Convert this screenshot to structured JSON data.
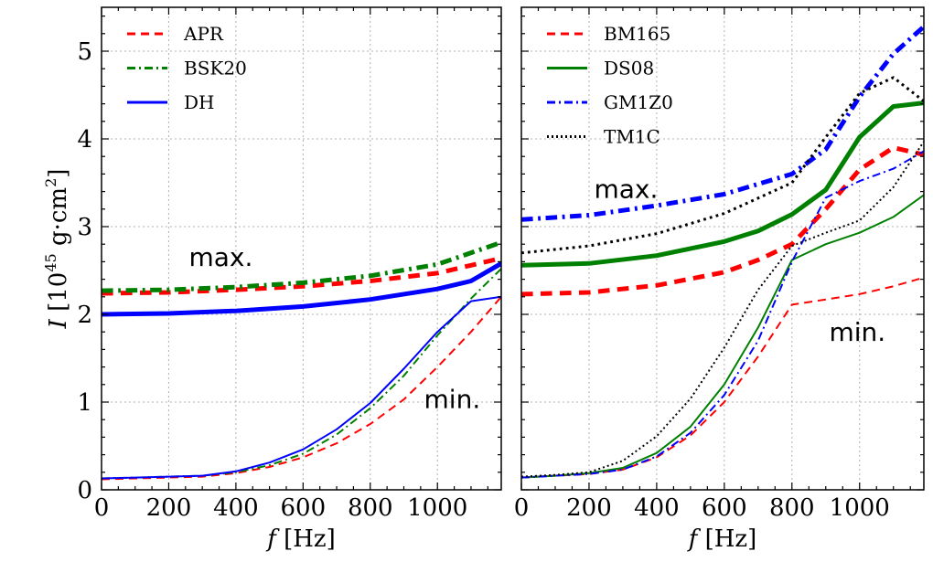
{
  "chart_data": [
    {
      "type": "line",
      "panel": "left",
      "xlabel": "f [Hz]",
      "ylabel": "I [10^45 g·cm^2]",
      "xlim": [
        0,
        1190
      ],
      "ylim": [
        0,
        5.5
      ],
      "xticks": [
        0,
        200,
        400,
        600,
        800,
        1000
      ],
      "yticks": [
        0,
        1,
        2,
        3,
        4,
        5
      ],
      "x_tick_labels": [
        "0",
        "200",
        "400",
        "600",
        "800",
        "1000"
      ],
      "y_tick_labels": [
        "0",
        "1",
        "2",
        "3",
        "4",
        "5"
      ],
      "grid": true,
      "legend_position": "top-left",
      "legend": [
        {
          "name": "APR",
          "color": "#ff0000",
          "style": "dashed"
        },
        {
          "name": "BSK20",
          "color": "#008000",
          "style": "dashdot"
        },
        {
          "name": "DH",
          "color": "#0000ff",
          "style": "solid"
        }
      ],
      "annotations": [
        {
          "text": "max.",
          "x": 260,
          "y": 2.55
        },
        {
          "text": "min.",
          "x": 960,
          "y": 0.93
        }
      ],
      "series": [
        {
          "name": "APR max",
          "legend": "APR",
          "color": "#ff0000",
          "style": "dashed",
          "weight": "thick",
          "x": [
            0,
            200,
            400,
            600,
            800,
            1000,
            1190
          ],
          "y": [
            2.24,
            2.25,
            2.28,
            2.32,
            2.38,
            2.47,
            2.64
          ]
        },
        {
          "name": "BSK20 max",
          "legend": "BSK20",
          "color": "#008000",
          "style": "dashdot",
          "weight": "thick",
          "x": [
            0,
            200,
            400,
            600,
            800,
            1000,
            1190
          ],
          "y": [
            2.27,
            2.28,
            2.31,
            2.36,
            2.44,
            2.57,
            2.82
          ]
        },
        {
          "name": "DH max",
          "legend": "DH",
          "color": "#0000ff",
          "style": "solid",
          "weight": "thick",
          "x": [
            0,
            200,
            400,
            600,
            800,
            1000,
            1100,
            1190
          ],
          "y": [
            2.0,
            2.01,
            2.04,
            2.09,
            2.17,
            2.29,
            2.38,
            2.58
          ]
        },
        {
          "name": "APR min",
          "legend": "APR",
          "color": "#ff0000",
          "style": "dashed",
          "weight": "thin",
          "x": [
            0,
            100,
            200,
            300,
            400,
            500,
            600,
            700,
            800,
            900,
            1000,
            1100,
            1190
          ],
          "y": [
            0.12,
            0.13,
            0.14,
            0.15,
            0.19,
            0.26,
            0.37,
            0.53,
            0.75,
            1.03,
            1.4,
            1.8,
            2.2
          ]
        },
        {
          "name": "BSK20 min",
          "legend": "BSK20",
          "color": "#008000",
          "style": "dashdot",
          "weight": "thin",
          "x": [
            0,
            100,
            200,
            300,
            400,
            500,
            600,
            700,
            800,
            900,
            1000,
            1100,
            1190
          ],
          "y": [
            0.13,
            0.14,
            0.15,
            0.16,
            0.2,
            0.28,
            0.41,
            0.63,
            0.93,
            1.3,
            1.76,
            2.18,
            2.52
          ]
        },
        {
          "name": "DH min",
          "legend": "DH",
          "color": "#0000ff",
          "style": "solid",
          "weight": "thin",
          "x": [
            0,
            100,
            200,
            300,
            400,
            500,
            600,
            700,
            800,
            900,
            1000,
            1100,
            1190
          ],
          "y": [
            0.13,
            0.14,
            0.15,
            0.16,
            0.21,
            0.31,
            0.46,
            0.69,
            0.99,
            1.38,
            1.8,
            2.15,
            2.2
          ]
        }
      ]
    },
    {
      "type": "line",
      "panel": "right",
      "xlabel": "f [Hz]",
      "ylabel": "",
      "xlim": [
        0,
        1190
      ],
      "ylim": [
        0,
        5.5
      ],
      "xticks": [
        0,
        200,
        400,
        600,
        800,
        1000
      ],
      "yticks": [
        0,
        1,
        2,
        3,
        4,
        5
      ],
      "x_tick_labels": [
        "0",
        "200",
        "400",
        "600",
        "800",
        "1000"
      ],
      "grid": true,
      "legend_position": "top-left",
      "legend": [
        {
          "name": "BM165",
          "color": "#ff0000",
          "style": "dashed"
        },
        {
          "name": "DS08",
          "color": "#008000",
          "style": "solid"
        },
        {
          "name": "GM1Z0",
          "color": "#0000ff",
          "style": "dashdot"
        },
        {
          "name": "TM1C",
          "color": "#000000",
          "style": "dotted"
        }
      ],
      "annotations": [
        {
          "text": "max.",
          "x": 215,
          "y": 3.33
        },
        {
          "text": "min.",
          "x": 910,
          "y": 1.7
        }
      ],
      "series": [
        {
          "name": "BM165 max",
          "legend": "BM165",
          "color": "#ff0000",
          "style": "dashed",
          "weight": "thick",
          "x": [
            0,
            200,
            400,
            600,
            700,
            800,
            900,
            1000,
            1100,
            1190
          ],
          "y": [
            2.23,
            2.25,
            2.33,
            2.48,
            2.62,
            2.8,
            3.2,
            3.65,
            3.9,
            3.82
          ]
        },
        {
          "name": "DS08 max",
          "legend": "DS08",
          "color": "#008000",
          "style": "solid",
          "weight": "thick",
          "x": [
            0,
            200,
            400,
            600,
            700,
            800,
            900,
            1000,
            1100,
            1190
          ],
          "y": [
            2.56,
            2.58,
            2.67,
            2.83,
            2.95,
            3.14,
            3.42,
            4.02,
            4.37,
            4.41
          ]
        },
        {
          "name": "GM1Z0 max",
          "legend": "GM1Z0",
          "color": "#0000ff",
          "style": "dashdot",
          "weight": "thick",
          "x": [
            0,
            200,
            400,
            600,
            800,
            900,
            1000,
            1100,
            1190
          ],
          "y": [
            3.08,
            3.13,
            3.24,
            3.37,
            3.6,
            3.88,
            4.48,
            4.97,
            5.28
          ]
        },
        {
          "name": "TM1C max",
          "legend": "TM1C",
          "color": "#000000",
          "style": "dotted",
          "weight": "thick",
          "x": [
            0,
            200,
            400,
            600,
            800,
            900,
            1000,
            1100,
            1190
          ],
          "y": [
            2.7,
            2.78,
            2.92,
            3.15,
            3.5,
            4.02,
            4.52,
            4.7,
            4.43
          ]
        },
        {
          "name": "BM165 min",
          "legend": "BM165",
          "color": "#ff0000",
          "style": "dashed",
          "weight": "thin",
          "x": [
            0,
            100,
            200,
            300,
            400,
            500,
            600,
            700,
            800,
            900,
            1000,
            1100,
            1190
          ],
          "y": [
            0.14,
            0.16,
            0.18,
            0.23,
            0.37,
            0.62,
            1.0,
            1.52,
            2.11,
            2.17,
            2.23,
            2.32,
            2.42
          ]
        },
        {
          "name": "DS08 min",
          "legend": "DS08",
          "color": "#008000",
          "style": "solid",
          "weight": "thin",
          "x": [
            0,
            100,
            200,
            300,
            400,
            500,
            600,
            700,
            800,
            900,
            1000,
            1100,
            1190
          ],
          "y": [
            0.14,
            0.16,
            0.19,
            0.25,
            0.42,
            0.72,
            1.2,
            1.85,
            2.62,
            2.8,
            2.93,
            3.11,
            3.36
          ]
        },
        {
          "name": "GM1Z0 min",
          "legend": "GM1Z0",
          "color": "#0000ff",
          "style": "dashdot",
          "weight": "thin",
          "x": [
            0,
            100,
            200,
            300,
            400,
            500,
            600,
            700,
            800,
            900,
            1000,
            1100,
            1190
          ],
          "y": [
            0.14,
            0.16,
            0.18,
            0.23,
            0.38,
            0.65,
            1.08,
            1.7,
            2.6,
            3.33,
            3.52,
            3.66,
            3.86
          ]
        },
        {
          "name": "TM1C min",
          "legend": "TM1C",
          "color": "#000000",
          "style": "dotted",
          "weight": "thin",
          "x": [
            0,
            100,
            200,
            300,
            400,
            500,
            600,
            700,
            800,
            900,
            1000,
            1100,
            1190
          ],
          "y": [
            0.15,
            0.17,
            0.2,
            0.33,
            0.61,
            1.04,
            1.62,
            2.28,
            2.78,
            2.93,
            3.07,
            3.45,
            3.97
          ]
        }
      ]
    }
  ]
}
